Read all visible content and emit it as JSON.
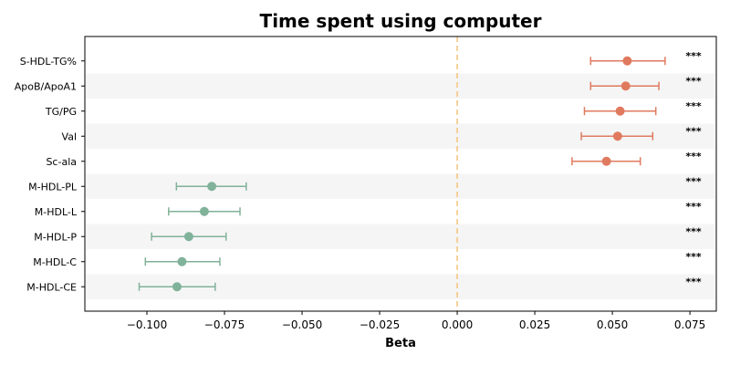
{
  "chart_data": {
    "type": "scatter",
    "subtype": "forest-plot",
    "title": "Time spent using computer",
    "xlabel": "Beta",
    "ylabel": "",
    "xlim": [
      -0.12,
      0.0835
    ],
    "xticks": [
      -0.1,
      -0.075,
      -0.05,
      -0.025,
      0.0,
      0.025,
      0.05,
      0.075
    ],
    "xtick_labels": [
      "−0.100",
      "−0.075",
      "−0.050",
      "−0.025",
      "0.000",
      "0.025",
      "0.050",
      "0.075"
    ],
    "reference_line": {
      "x": 0.0,
      "style": "dashed",
      "color": "#f5c27a"
    },
    "grid": false,
    "row_shading": true,
    "colors": {
      "positive": "#e07a5f",
      "negative": "#81b29a",
      "stripe": "#f5f5f5"
    },
    "categories": [
      "S-HDL-TG%",
      "ApoB/ApoA1",
      "TG/PG",
      "Val",
      "Sc-ala",
      "M-HDL-PL",
      "M-HDL-L",
      "M-HDL-P",
      "M-HDL-C",
      "M-HDL-CE"
    ],
    "beta": [
      0.0548,
      0.0543,
      0.0525,
      0.0517,
      0.0481,
      -0.0791,
      -0.0815,
      -0.0865,
      -0.0887,
      -0.0903
    ],
    "ci_lower": [
      0.043,
      0.043,
      0.041,
      0.04,
      0.037,
      -0.0905,
      -0.093,
      -0.0985,
      -0.1005,
      -0.1025
    ],
    "ci_upper": [
      0.067,
      0.065,
      0.064,
      0.063,
      0.059,
      -0.068,
      -0.07,
      -0.0745,
      -0.0765,
      -0.078
    ],
    "significance": [
      "***",
      "***",
      "***",
      "***",
      "***",
      "***",
      "***",
      "***",
      "***",
      "***"
    ]
  }
}
